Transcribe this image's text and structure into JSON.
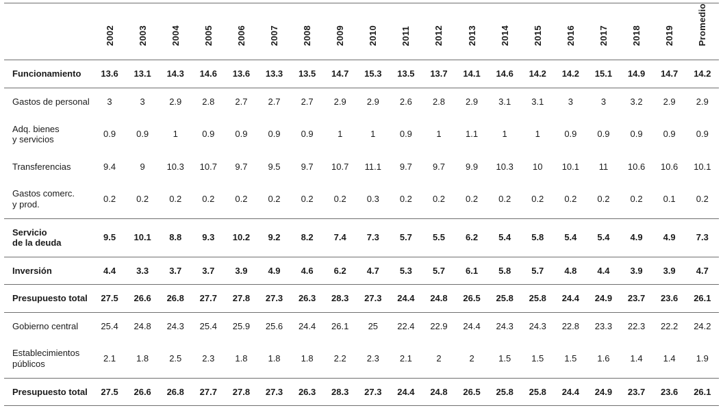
{
  "table": {
    "years": [
      "2002",
      "2003",
      "2004",
      "2005",
      "2006",
      "2007",
      "2008",
      "2009",
      "2010",
      "2011",
      "2012",
      "2013",
      "2014",
      "2015",
      "2016",
      "2017",
      "2018",
      "2019"
    ],
    "promedio_label": "Promedio",
    "colors": {
      "line": "#6e6e6e",
      "text": "#1a1a1a"
    },
    "sections": [
      {
        "name": "funcionamiento",
        "rows": [
          {
            "label": "Funcionamiento",
            "bold": true,
            "values": [
              "13.6",
              "13.1",
              "14.3",
              "14.6",
              "13.6",
              "13.3",
              "13.5",
              "14.7",
              "15.3",
              "13.5",
              "13.7",
              "14.1",
              "14.6",
              "14.2",
              "14.2",
              "15.1",
              "14.9",
              "14.7"
            ],
            "promedio": "14.2"
          }
        ]
      },
      {
        "name": "funcionamiento-detalle",
        "rows": [
          {
            "label": "Gastos de personal",
            "bold": false,
            "values": [
              "3",
              "3",
              "2.9",
              "2.8",
              "2.7",
              "2.7",
              "2.7",
              "2.9",
              "2.9",
              "2.6",
              "2.8",
              "2.9",
              "3.1",
              "3.1",
              "3",
              "3",
              "3.2",
              "2.9"
            ],
            "promedio": "2.9"
          },
          {
            "label": "Adq. bienes\ny servicios",
            "bold": false,
            "values": [
              "0.9",
              "0.9",
              "1",
              "0.9",
              "0.9",
              "0.9",
              "0.9",
              "1",
              "1",
              "0.9",
              "1",
              "1.1",
              "1",
              "1",
              "0.9",
              "0.9",
              "0.9",
              "0.9"
            ],
            "promedio": "0.9"
          },
          {
            "label": "Transferencias",
            "bold": false,
            "values": [
              "9.4",
              "9",
              "10.3",
              "10.7",
              "9.7",
              "9.5",
              "9.7",
              "10.7",
              "11.1",
              "9.7",
              "9.7",
              "9.9",
              "10.3",
              "10",
              "10.1",
              "11",
              "10.6",
              "10.6"
            ],
            "promedio": "10.1"
          },
          {
            "label": "Gastos comerc.\ny prod.",
            "bold": false,
            "values": [
              "0.2",
              "0.2",
              "0.2",
              "0.2",
              "0.2",
              "0.2",
              "0.2",
              "0.2",
              "0.3",
              "0.2",
              "0.2",
              "0.2",
              "0.2",
              "0.2",
              "0.2",
              "0.2",
              "0.2",
              "0.1"
            ],
            "promedio": "0.2"
          }
        ]
      },
      {
        "name": "servicio-de-la-deuda",
        "rows": [
          {
            "label": "Servicio\nde la deuda",
            "bold": true,
            "values": [
              "9.5",
              "10.1",
              "8.8",
              "9.3",
              "10.2",
              "9.2",
              "8.2",
              "7.4",
              "7.3",
              "5.7",
              "5.5",
              "6.2",
              "5.4",
              "5.8",
              "5.4",
              "5.4",
              "4.9",
              "4.9"
            ],
            "promedio": "7.3"
          }
        ]
      },
      {
        "name": "inversion",
        "rows": [
          {
            "label": "Inversión",
            "bold": true,
            "values": [
              "4.4",
              "3.3",
              "3.7",
              "3.7",
              "3.9",
              "4.9",
              "4.6",
              "6.2",
              "4.7",
              "5.3",
              "5.7",
              "6.1",
              "5.8",
              "5.7",
              "4.8",
              "4.4",
              "3.9",
              "3.9"
            ],
            "promedio": "4.7"
          }
        ]
      },
      {
        "name": "presupuesto-total",
        "rows": [
          {
            "label": "Presupuesto total",
            "bold": true,
            "values": [
              "27.5",
              "26.6",
              "26.8",
              "27.7",
              "27.8",
              "27.3",
              "26.3",
              "28.3",
              "27.3",
              "24.4",
              "24.8",
              "26.5",
              "25.8",
              "25.8",
              "24.4",
              "24.9",
              "23.7",
              "23.6"
            ],
            "promedio": "26.1"
          }
        ]
      },
      {
        "name": "desglose-institucional",
        "rows": [
          {
            "label": "Gobierno central",
            "bold": false,
            "values": [
              "25.4",
              "24.8",
              "24.3",
              "25.4",
              "25.9",
              "25.6",
              "24.4",
              "26.1",
              "25",
              "22.4",
              "22.9",
              "24.4",
              "24.3",
              "24.3",
              "22.8",
              "23.3",
              "22.3",
              "22.2"
            ],
            "promedio": "24.2"
          },
          {
            "label": "Establecimientos\npúblicos",
            "bold": false,
            "values": [
              "2.1",
              "1.8",
              "2.5",
              "2.3",
              "1.8",
              "1.8",
              "1.8",
              "2.2",
              "2.3",
              "2.1",
              "2",
              "2",
              "1.5",
              "1.5",
              "1.5",
              "1.6",
              "1.4",
              "1.4"
            ],
            "promedio": "1.9"
          }
        ]
      },
      {
        "name": "presupuesto-total-final",
        "rows": [
          {
            "label": "Presupuesto total",
            "bold": true,
            "values": [
              "27.5",
              "26.6",
              "26.8",
              "27.7",
              "27.8",
              "27.3",
              "26.3",
              "28.3",
              "27.3",
              "24.4",
              "24.8",
              "26.5",
              "25.8",
              "25.8",
              "24.4",
              "24.9",
              "23.7",
              "23.6"
            ],
            "promedio": "26.1"
          }
        ]
      }
    ]
  }
}
